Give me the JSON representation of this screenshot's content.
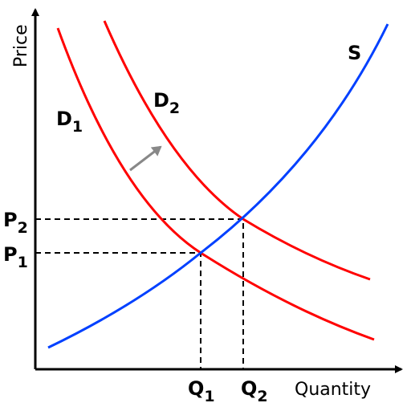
{
  "axes": {
    "y_label": "Price",
    "x_label": "Quantity"
  },
  "curves": {
    "supply": "S",
    "demand_1": {
      "main": "D",
      "sub": "1"
    },
    "demand_2": {
      "main": "D",
      "sub": "2"
    }
  },
  "prices": [
    {
      "main": "P",
      "sub": "1"
    },
    {
      "main": "P",
      "sub": "2"
    }
  ],
  "quantities": [
    {
      "main": "Q",
      "sub": "1"
    },
    {
      "main": "Q",
      "sub": "2"
    }
  ]
}
